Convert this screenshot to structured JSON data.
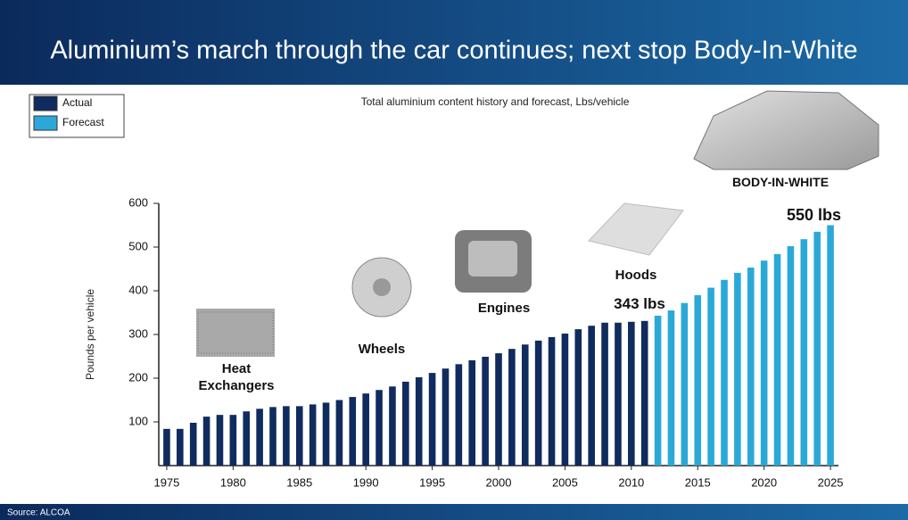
{
  "chart_data": {
    "type": "bar",
    "title": "Aluminium’s march through the car continues; next stop Body-In-White",
    "subtitle": "Total aluminium content history and forecast, Lbs/vehicle",
    "y_label": "Pounds per vehicle",
    "source": "Source: ALCOA",
    "x": [
      1975,
      1976,
      1977,
      1978,
      1979,
      1980,
      1981,
      1982,
      1983,
      1984,
      1985,
      1986,
      1987,
      1988,
      1989,
      1990,
      1991,
      1992,
      1993,
      1994,
      1995,
      1996,
      1997,
      1998,
      1999,
      2000,
      2001,
      2002,
      2003,
      2004,
      2005,
      2006,
      2007,
      2008,
      2009,
      2010,
      2011,
      2012,
      2013,
      2014,
      2015,
      2016,
      2017,
      2018,
      2019,
      2020,
      2021,
      2022,
      2023,
      2024,
      2025
    ],
    "series": [
      {
        "name": "Actual",
        "color": "#102b5e",
        "values": [
          84,
          84,
          98,
          112,
          116,
          116,
          124,
          130,
          134,
          136,
          136,
          140,
          144,
          150,
          157,
          165,
          173,
          181,
          192,
          202,
          212,
          222,
          232,
          241,
          249,
          257,
          267,
          277,
          286,
          294,
          302,
          312,
          320,
          327,
          327,
          329,
          331,
          null,
          null,
          null,
          null,
          null,
          null,
          null,
          null,
          null,
          null,
          null,
          null,
          null,
          null
        ]
      },
      {
        "name": "Forecast",
        "color": "#2aa9d8",
        "values": [
          null,
          null,
          null,
          null,
          null,
          null,
          null,
          null,
          null,
          null,
          null,
          null,
          null,
          null,
          null,
          null,
          null,
          null,
          null,
          null,
          null,
          null,
          null,
          null,
          null,
          null,
          null,
          null,
          null,
          null,
          null,
          null,
          null,
          null,
          null,
          null,
          null,
          343,
          355,
          372,
          390,
          407,
          425,
          441,
          453,
          469,
          484,
          502,
          518,
          535,
          550
        ]
      }
    ],
    "xlim": [
      1974.4,
      2025.6
    ],
    "xticks": [
      1975,
      1980,
      1985,
      1990,
      1995,
      2000,
      2005,
      2010,
      2015,
      2020,
      2025
    ],
    "ylim": [
      0,
      600
    ],
    "yticks": [
      100,
      200,
      300,
      400,
      500,
      600
    ],
    "legend": "top-left",
    "annotations": [
      "Heat Exchangers",
      "Wheels",
      "Engines",
      "Hoods",
      "343 lbs",
      "BODY-IN-WHITE",
      "550 lbs"
    ]
  }
}
